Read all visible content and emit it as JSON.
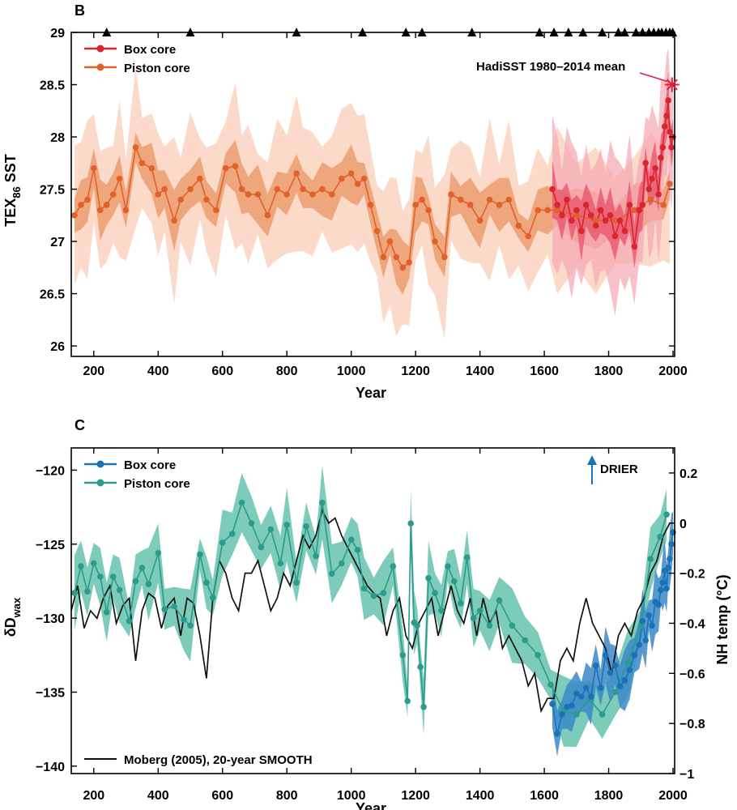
{
  "chart_data": [
    {
      "panel": "B",
      "type": "line",
      "xlabel": "Year",
      "ylabel_main": "TEX",
      "ylabel_sub": "86",
      "ylabel_tail": " SST",
      "xlim": [
        130,
        2005
      ],
      "ylim": [
        25.9,
        29
      ],
      "x_ticks": [
        200,
        400,
        600,
        800,
        1000,
        1200,
        1400,
        1600,
        1800,
        2000
      ],
      "x_tick_labels": [
        "200",
        "400",
        "600",
        "800",
        "1000",
        "1200",
        "1400",
        "1600",
        "1800",
        "2000"
      ],
      "y_ticks": [
        26,
        26.5,
        27,
        27.5,
        28,
        28.5,
        29
      ],
      "y_tick_labels": [
        "26",
        "26.5",
        "27",
        "27.5",
        "28",
        "28.5",
        "29"
      ],
      "legend": [
        "Box core",
        "Piston core"
      ],
      "annotation": {
        "label": "HadiSST 1980–2014 mean",
        "x": 1997,
        "y": 28.5,
        "color": "#e0203a"
      },
      "date_markers": [
        240,
        500,
        830,
        1035,
        1170,
        1220,
        1375,
        1585,
        1630,
        1675,
        1720,
        1780,
        1830,
        1850,
        1885,
        1905,
        1925,
        1940,
        1955,
        1965,
        1978,
        1990,
        1999
      ],
      "series": [
        {
          "name": "Piston core",
          "color": "#e2602a",
          "band_inner": "#eb9c6e",
          "band_outer": "#fbd4bf",
          "x": [
            140,
            160,
            180,
            200,
            220,
            240,
            260,
            280,
            300,
            330,
            350,
            380,
            400,
            420,
            450,
            470,
            500,
            530,
            550,
            580,
            610,
            640,
            660,
            680,
            710,
            740,
            770,
            800,
            830,
            850,
            880,
            910,
            940,
            970,
            1000,
            1020,
            1040,
            1060,
            1080,
            1100,
            1120,
            1140,
            1160,
            1180,
            1200,
            1220,
            1240,
            1260,
            1290,
            1310,
            1340,
            1370,
            1400,
            1430,
            1460,
            1490,
            1520,
            1550,
            1580,
            1610,
            1640,
            1700,
            1760,
            1820,
            1880,
            1930,
            1970,
            1990
          ],
          "y": [
            27.25,
            27.35,
            27.4,
            27.7,
            27.3,
            27.35,
            27.45,
            27.6,
            27.3,
            27.9,
            27.75,
            27.7,
            27.45,
            27.5,
            27.2,
            27.4,
            27.5,
            27.6,
            27.4,
            27.3,
            27.7,
            27.72,
            27.5,
            27.45,
            27.45,
            27.25,
            27.5,
            27.45,
            27.65,
            27.5,
            27.45,
            27.5,
            27.45,
            27.6,
            27.65,
            27.55,
            27.6,
            27.35,
            27.1,
            26.85,
            27.0,
            26.85,
            26.75,
            26.8,
            27.35,
            27.4,
            27.3,
            27.0,
            26.85,
            27.45,
            27.4,
            27.35,
            27.2,
            27.4,
            27.35,
            27.4,
            27.15,
            27.05,
            27.3,
            27.3,
            27.3,
            27.25,
            27.2,
            27.2,
            27.3,
            27.4,
            27.35,
            27.55
          ]
        },
        {
          "name": "Box core",
          "color": "#d8262e",
          "band_inner": "#e8506a",
          "band_outer": "#f5a6b3",
          "x": [
            1625,
            1640,
            1655,
            1670,
            1685,
            1700,
            1715,
            1730,
            1745,
            1760,
            1775,
            1790,
            1805,
            1820,
            1835,
            1850,
            1865,
            1880,
            1895,
            1905,
            1915,
            1925,
            1935,
            1945,
            1955,
            1962,
            1968,
            1974,
            1980,
            1985,
            1990,
            1995,
            2000
          ],
          "y": [
            27.5,
            27.35,
            27.25,
            27.4,
            27.2,
            27.3,
            27.1,
            27.35,
            27.25,
            27.15,
            27.3,
            27.2,
            27.25,
            27.05,
            27.2,
            27.1,
            27.35,
            26.95,
            27.3,
            27.35,
            27.75,
            27.5,
            27.6,
            27.7,
            27.45,
            27.8,
            27.9,
            28.1,
            28.2,
            28.35,
            28.05,
            27.9,
            28.0
          ]
        }
      ]
    },
    {
      "panel": "C",
      "type": "line",
      "xlabel": "Year",
      "ylabel_main": "δD",
      "ylabel_sub": "wax",
      "ylabel_right": "NH temp (°C)",
      "xlim": [
        130,
        2005
      ],
      "ylim": [
        -140.5,
        -118.5
      ],
      "ylim_right": [
        -1.0,
        0.3
      ],
      "x_ticks": [
        200,
        400,
        600,
        800,
        1000,
        1200,
        1400,
        1600,
        1800,
        2000
      ],
      "x_tick_labels": [
        "200",
        "400",
        "600",
        "800",
        "1000",
        "1200",
        "1400",
        "1600",
        "1800",
        "2000"
      ],
      "y_ticks": [
        -140,
        -135,
        -130,
        -125,
        -120
      ],
      "y_tick_labels": [
        "−140",
        "−135",
        "−130",
        "−125",
        "−120"
      ],
      "y_ticks_right": [
        -1.0,
        -0.8,
        -0.6,
        -0.4,
        -0.2,
        0.0,
        0.2
      ],
      "y_tick_labels_right": [
        "−1",
        "−0.8",
        "−0.6",
        "−0.4",
        "−0.2",
        "0",
        "0.2"
      ],
      "legend": [
        "Box core",
        "Piston core"
      ],
      "legend_bottom": "Moberg (2005), 20-year SMOOTH",
      "annotation": {
        "label": "DRIER",
        "color": "#1a73b5"
      },
      "series": [
        {
          "name": "Piston core",
          "color": "#2c9a8c",
          "band": "#5cbfa8",
          "x": [
            140,
            160,
            180,
            200,
            220,
            240,
            260,
            280,
            310,
            330,
            350,
            370,
            400,
            420,
            450,
            480,
            500,
            530,
            550,
            570,
            600,
            630,
            660,
            690,
            720,
            750,
            780,
            800,
            830,
            860,
            890,
            910,
            940,
            970,
            1000,
            1020,
            1040,
            1070,
            1100,
            1130,
            1160,
            1175,
            1185,
            1195,
            1205,
            1215,
            1225,
            1240,
            1260,
            1280,
            1300,
            1320,
            1340,
            1360,
            1380,
            1400,
            1430,
            1460,
            1500,
            1540,
            1580,
            1620,
            1660,
            1700,
            1740,
            1780,
            1820,
            1860,
            1900,
            1930,
            1960,
            1980
          ],
          "y": [
            -128.3,
            -126.5,
            -128.2,
            -126.3,
            -127.2,
            -129.6,
            -127.2,
            -128.1,
            -130.2,
            -127.5,
            -126.6,
            -127.7,
            -125.6,
            -129.4,
            -129.2,
            -130.1,
            -130.5,
            -125.7,
            -127.6,
            -128.6,
            -124.9,
            -124.3,
            -122.2,
            -123.6,
            -125.2,
            -124.0,
            -126.3,
            -123.7,
            -127.6,
            -123.8,
            -125.8,
            -122.2,
            -127.0,
            -126.3,
            -124.7,
            -125.4,
            -128.0,
            -128.5,
            -128.3,
            -126.5,
            -132.5,
            -135.6,
            -123.6,
            -130.3,
            -130.5,
            -133.3,
            -136.0,
            -127.3,
            -128.3,
            -129.5,
            -126.5,
            -127.5,
            -129.0,
            -125.9,
            -130.0,
            -129.5,
            -130.5,
            -128.8,
            -130.5,
            -131.5,
            -132.5,
            -134.5,
            -136.3,
            -136.5,
            -135.5,
            -136.5,
            -135.0,
            -133.0,
            -130.5,
            -126.0,
            -124.5,
            -123.0
          ]
        },
        {
          "name": "Box core",
          "color": "#1a73b5",
          "band": "#3b87c8",
          "x": [
            1625,
            1640,
            1655,
            1670,
            1685,
            1700,
            1715,
            1730,
            1745,
            1760,
            1775,
            1790,
            1805,
            1820,
            1835,
            1850,
            1865,
            1880,
            1895,
            1905,
            1915,
            1925,
            1935,
            1945,
            1955,
            1962,
            1968,
            1974,
            1980,
            1985,
            1990,
            1995,
            2000
          ],
          "y": [
            -135.8,
            -137.8,
            -136.5,
            -136.0,
            -135.9,
            -135.1,
            -135.3,
            -134.7,
            -135.3,
            -133.2,
            -134.7,
            -132.5,
            -133.7,
            -133.2,
            -134.6,
            -134.2,
            -133.5,
            -132.5,
            -131.8,
            -130.2,
            -131.5,
            -129.8,
            -130.5,
            -128.9,
            -129.1,
            -128.1,
            -127.6,
            -126.8,
            -128.0,
            -126.6,
            -126.0,
            -125.0,
            -124.2
          ]
        },
        {
          "name": "Moberg (2005), 20-year SMOOTH",
          "axis": "right",
          "color": "#111111",
          "x": [
            130,
            150,
            170,
            190,
            210,
            230,
            250,
            270,
            290,
            310,
            330,
            350,
            370,
            390,
            410,
            430,
            450,
            470,
            490,
            510,
            530,
            550,
            570,
            590,
            610,
            630,
            650,
            670,
            690,
            710,
            730,
            750,
            770,
            790,
            810,
            830,
            850,
            870,
            890,
            910,
            930,
            950,
            970,
            990,
            1010,
            1030,
            1050,
            1070,
            1090,
            1110,
            1130,
            1150,
            1170,
            1190,
            1210,
            1230,
            1250,
            1270,
            1290,
            1310,
            1330,
            1350,
            1370,
            1390,
            1410,
            1430,
            1450,
            1470,
            1490,
            1510,
            1530,
            1550,
            1570,
            1590,
            1610,
            1630,
            1650,
            1670,
            1690,
            1710,
            1730,
            1750,
            1770,
            1790,
            1810,
            1830,
            1850,
            1870,
            1890,
            1910,
            1930,
            1950,
            1970,
            1990
          ],
          "y": [
            -0.35,
            -0.25,
            -0.42,
            -0.35,
            -0.38,
            -0.3,
            -0.25,
            -0.4,
            -0.33,
            -0.3,
            -0.55,
            -0.35,
            -0.28,
            -0.3,
            -0.42,
            -0.33,
            -0.3,
            -0.45,
            -0.3,
            -0.32,
            -0.45,
            -0.62,
            -0.3,
            -0.15,
            -0.2,
            -0.3,
            -0.35,
            -0.2,
            -0.2,
            -0.15,
            -0.25,
            -0.35,
            -0.3,
            -0.2,
            -0.25,
            -0.15,
            -0.05,
            -0.1,
            -0.05,
            0.05,
            0.0,
            0.02,
            -0.05,
            -0.1,
            -0.15,
            -0.2,
            -0.25,
            -0.28,
            -0.3,
            -0.45,
            -0.35,
            -0.3,
            -0.45,
            -0.5,
            -0.4,
            -0.35,
            -0.3,
            -0.45,
            -0.35,
            -0.25,
            -0.35,
            -0.4,
            -0.3,
            -0.45,
            -0.3,
            -0.4,
            -0.35,
            -0.5,
            -0.45,
            -0.5,
            -0.55,
            -0.65,
            -0.6,
            -0.75,
            -0.7,
            -0.7,
            -0.55,
            -0.5,
            -0.55,
            -0.4,
            -0.3,
            -0.4,
            -0.45,
            -0.5,
            -0.6,
            -0.45,
            -0.4,
            -0.45,
            -0.35,
            -0.3,
            -0.2,
            -0.15,
            -0.05,
            0.0
          ]
        }
      ]
    }
  ]
}
